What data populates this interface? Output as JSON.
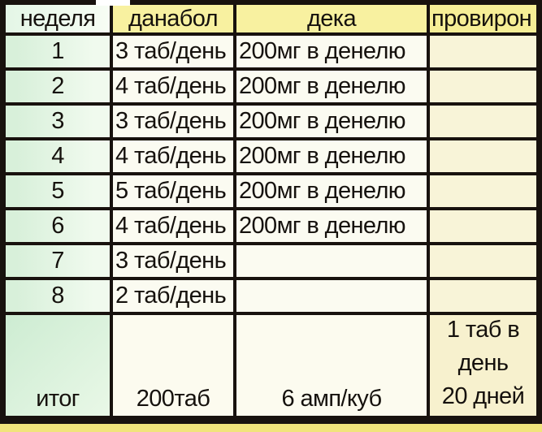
{
  "chart_data": {
    "type": "table",
    "columns": [
      "неделя",
      "данабол",
      "дека",
      "провирон"
    ],
    "rows": [
      [
        "1",
        "3 таб/день",
        "200мг в денелю",
        ""
      ],
      [
        "2",
        "4 таб/день",
        "200мг в денелю",
        ""
      ],
      [
        "3",
        "3 таб/день",
        "200мг в денелю",
        ""
      ],
      [
        "4",
        "4 таб/день",
        "200мг в денелю",
        ""
      ],
      [
        "5",
        "5 таб/день",
        "200мг в денелю",
        ""
      ],
      [
        "6",
        "4 таб/день",
        "200мг в денелю",
        ""
      ],
      [
        "7",
        "3 таб/день",
        "",
        ""
      ],
      [
        "8",
        "2 таб/день",
        "",
        ""
      ]
    ],
    "total": [
      "итог",
      "200таб",
      "6 амп/куб",
      "1 таб в\nдень\n20 дней"
    ],
    "layout_hints": {
      "grid": "on",
      "header_row": true,
      "total_row_bottom_aligned": true,
      "proviron_header_clipped_right": true
    }
  },
  "colors": {
    "header_yellow": "#f8f1a0",
    "proviron_header_yellow": "#f6ee96",
    "week_green": "#d8f0da",
    "total_green": "#cdecd2",
    "data_white": "#fbfbf1",
    "proviron_cream": "#f8f4d8",
    "page_background_yellow": "#f1e47b",
    "grid_border": "#18120e",
    "text": "#15110d"
  }
}
